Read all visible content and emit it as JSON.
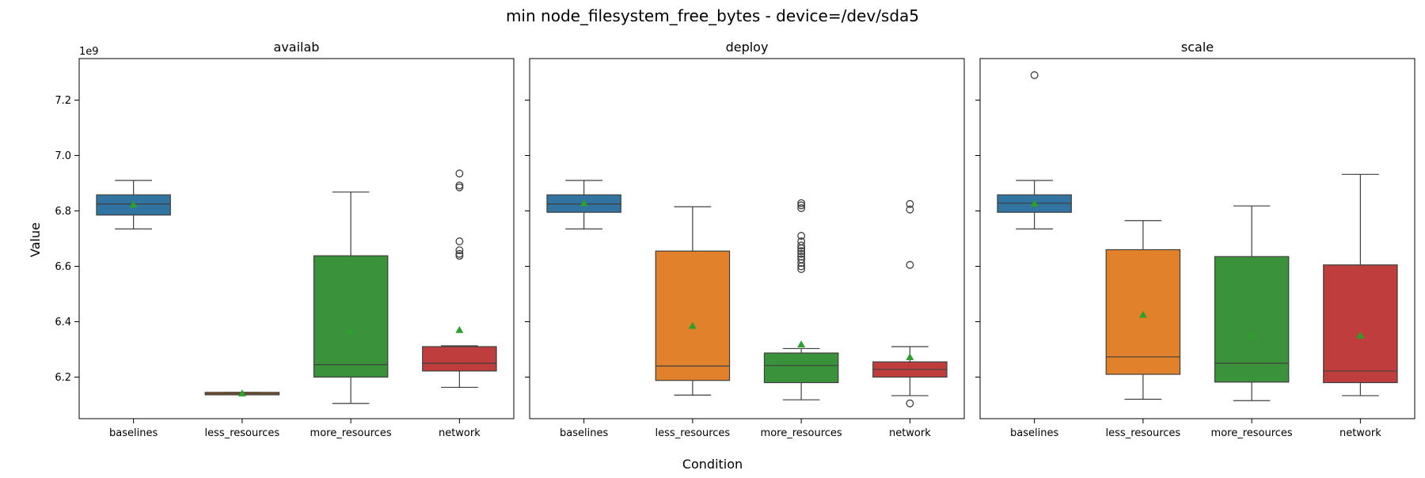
{
  "figure": {
    "title": "min node_filesystem_free_bytes - device=/dev/sda5",
    "xlabel": "Condition",
    "ylabel": "Value",
    "offset_text": "1e9"
  },
  "chart_data": {
    "type": "box",
    "categories": [
      "baselines",
      "less_resources",
      "more_resources",
      "network"
    ],
    "colors": {
      "baselines": "#3274a1",
      "less_resources": "#e1812c",
      "more_resources": "#3a923a",
      "network": "#c03d3e",
      "mean_marker": "#2ca02c"
    },
    "y_ticks": [
      "6.2",
      "6.4",
      "6.6",
      "6.8",
      "7.0",
      "7.2"
    ],
    "ylim": [
      6.05,
      7.35
    ],
    "y_scale_note": "values in units of 1e9 bytes",
    "panels": [
      {
        "title": "availab",
        "boxes": [
          {
            "category": "baselines",
            "whisker_low": 6.735,
            "q1": 6.785,
            "median": 6.825,
            "q3": 6.858,
            "whisker_high": 6.91,
            "mean": 6.823,
            "outliers": []
          },
          {
            "category": "less_resources",
            "whisker_low": 6.136,
            "q1": 6.136,
            "median": 6.14,
            "q3": 6.145,
            "whisker_high": 6.145,
            "mean": 6.141,
            "outliers": []
          },
          {
            "category": "more_resources",
            "whisker_low": 6.105,
            "q1": 6.2,
            "median": 6.245,
            "q3": 6.638,
            "whisker_high": 6.868,
            "mean": 6.365,
            "outliers": []
          },
          {
            "category": "network",
            "whisker_low": 6.163,
            "q1": 6.222,
            "median": 6.25,
            "q3": 6.31,
            "whisker_high": 6.313,
            "mean": 6.37,
            "outliers": [
              6.638,
              6.645,
              6.658,
              6.69,
              6.885,
              6.892,
              6.935
            ]
          }
        ]
      },
      {
        "title": "deploy",
        "boxes": [
          {
            "category": "baselines",
            "whisker_low": 6.735,
            "q1": 6.795,
            "median": 6.825,
            "q3": 6.858,
            "whisker_high": 6.91,
            "mean": 6.828,
            "outliers": []
          },
          {
            "category": "less_resources",
            "whisker_low": 6.135,
            "q1": 6.188,
            "median": 6.24,
            "q3": 6.655,
            "whisker_high": 6.815,
            "mean": 6.385,
            "outliers": []
          },
          {
            "category": "more_resources",
            "whisker_low": 6.118,
            "q1": 6.18,
            "median": 6.242,
            "q3": 6.287,
            "whisker_high": 6.303,
            "mean": 6.318,
            "outliers": [
              6.59,
              6.6,
              6.612,
              6.625,
              6.635,
              6.645,
              6.655,
              6.665,
              6.675,
              6.69,
              6.71,
              6.81,
              6.82,
              6.828
            ]
          },
          {
            "category": "network",
            "whisker_low": 6.133,
            "q1": 6.2,
            "median": 6.228,
            "q3": 6.255,
            "whisker_high": 6.31,
            "mean": 6.272,
            "outliers": [
              6.105,
              6.605,
              6.805,
              6.825
            ]
          }
        ]
      },
      {
        "title": "scale",
        "boxes": [
          {
            "category": "baselines",
            "whisker_low": 6.735,
            "q1": 6.795,
            "median": 6.828,
            "q3": 6.858,
            "whisker_high": 6.91,
            "mean": 6.826,
            "outliers": [
              7.29
            ]
          },
          {
            "category": "less_resources",
            "whisker_low": 6.12,
            "q1": 6.21,
            "median": 6.273,
            "q3": 6.66,
            "whisker_high": 6.765,
            "mean": 6.425,
            "outliers": []
          },
          {
            "category": "more_resources",
            "whisker_low": 6.115,
            "q1": 6.182,
            "median": 6.25,
            "q3": 6.635,
            "whisker_high": 6.818,
            "mean": 6.35,
            "outliers": []
          },
          {
            "category": "network",
            "whisker_low": 6.133,
            "q1": 6.18,
            "median": 6.222,
            "q3": 6.605,
            "whisker_high": 6.932,
            "mean": 6.35,
            "outliers": []
          }
        ]
      }
    ],
    "grid": false,
    "legend": "none"
  }
}
